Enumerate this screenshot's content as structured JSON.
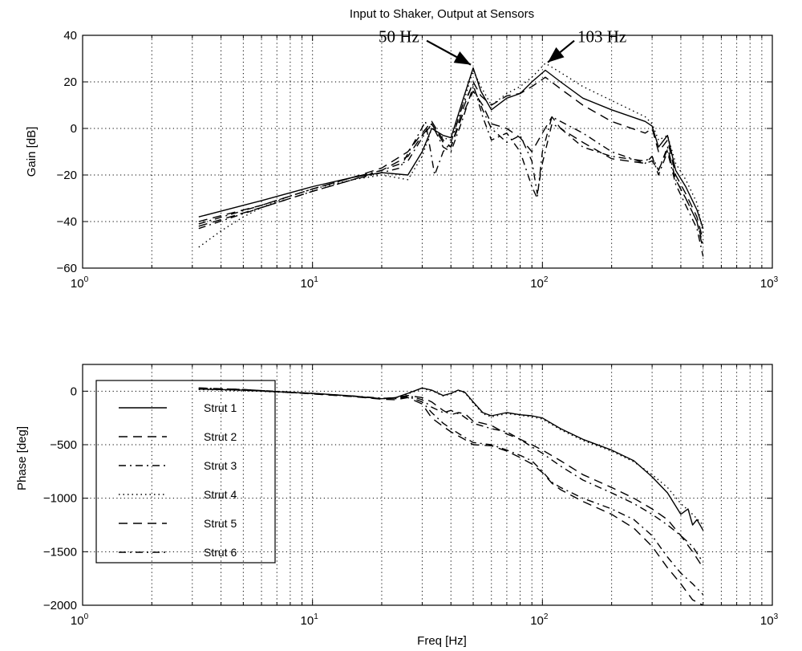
{
  "chart_data": [
    {
      "type": "line",
      "title": "Input to Shaker, Output at Sensors",
      "xlabel": "",
      "ylabel": "Gain  [dB]",
      "xscale": "log",
      "xlim": [
        1,
        1000
      ],
      "ylim": [
        -60,
        40
      ],
      "grid": true,
      "xticks": [
        {
          "base": "10",
          "exp": "0"
        },
        {
          "base": "10",
          "exp": "1"
        },
        {
          "base": "10",
          "exp": "2"
        },
        {
          "base": "10",
          "exp": "3"
        }
      ],
      "yticks": [
        "40",
        "20",
        "0",
        "−20",
        "−40",
        "−60"
      ],
      "ytick_values": [
        40,
        20,
        0,
        -20,
        -40,
        -60
      ],
      "annotations": [
        {
          "text": "50 Hz",
          "x": 50,
          "y": 26
        },
        {
          "text": "103 Hz",
          "x": 103,
          "y": 27
        }
      ],
      "series": [
        {
          "name": "Strut 1",
          "style": "solid",
          "x": [
            3.2,
            6,
            10,
            15,
            20,
            26,
            30,
            33,
            37,
            40,
            45,
            50,
            54,
            60,
            70,
            80,
            90,
            103,
            120,
            150,
            200,
            280,
            300,
            320,
            350,
            380,
            420,
            470,
            500
          ],
          "y": [
            -38,
            -31,
            -25,
            -21,
            -19,
            -20,
            -10,
            0,
            -3,
            -4,
            12,
            26,
            16,
            8,
            13,
            15,
            20,
            25,
            20,
            13,
            8,
            3,
            1,
            -8,
            -3,
            -18,
            -25,
            -35,
            -43
          ]
        },
        {
          "name": "Strut 2",
          "style": "dashed",
          "x": [
            3.2,
            6,
            10,
            15,
            20,
            26,
            30,
            33,
            37,
            40,
            45,
            50,
            54,
            60,
            70,
            80,
            90,
            103,
            120,
            150,
            200,
            280,
            300,
            320,
            350,
            380,
            420,
            470,
            500
          ],
          "y": [
            -40,
            -33,
            -26,
            -21,
            -17,
            -10,
            -2,
            3,
            -5,
            -8,
            8,
            20,
            14,
            10,
            14,
            15,
            18,
            22,
            17,
            10,
            3,
            -2,
            0,
            -10,
            -5,
            -20,
            -28,
            -38,
            -48
          ]
        },
        {
          "name": "Strut 3",
          "style": "dashdot",
          "x": [
            3.2,
            6,
            10,
            15,
            20,
            24,
            28,
            31,
            34,
            37,
            40,
            45,
            50,
            55,
            60,
            70,
            80,
            90,
            95,
            100,
            110,
            120,
            150,
            200,
            280,
            300,
            320,
            350,
            380,
            420,
            470,
            500
          ],
          "y": [
            -43,
            -34,
            -27,
            -22,
            -19,
            -17,
            -5,
            3,
            -20,
            -10,
            -6,
            10,
            19,
            5,
            -5,
            -2,
            -10,
            -25,
            -30,
            -10,
            5,
            3,
            -2,
            -10,
            -15,
            -12,
            -18,
            -8,
            -22,
            -30,
            -40,
            -50
          ]
        },
        {
          "name": "Strut 4",
          "style": "dotted",
          "x": [
            3.2,
            4,
            5,
            6,
            8,
            10,
            15,
            20,
            26,
            30,
            33,
            37,
            40,
            45,
            50,
            54,
            60,
            70,
            80,
            90,
            103,
            120,
            150,
            200,
            280,
            300,
            320,
            350,
            380,
            420,
            470,
            500
          ],
          "y": [
            -51,
            -44,
            -38,
            -34,
            -29,
            -26,
            -22,
            -20,
            -22,
            -12,
            0,
            -4,
            -5,
            10,
            25,
            18,
            10,
            15,
            18,
            22,
            28,
            24,
            18,
            12,
            5,
            2,
            -5,
            -3,
            -15,
            -22,
            -32,
            -45
          ]
        },
        {
          "name": "Strut 5",
          "style": "dashed",
          "x": [
            3.2,
            6,
            10,
            15,
            20,
            26,
            30,
            33,
            37,
            40,
            45,
            50,
            55,
            60,
            70,
            80,
            90,
            100,
            110,
            120,
            150,
            200,
            280,
            300,
            320,
            350,
            380,
            420,
            470,
            500
          ],
          "y": [
            -42,
            -34,
            -27,
            -22,
            -18,
            -12,
            -3,
            2,
            -6,
            -8,
            6,
            16,
            10,
            2,
            0,
            -4,
            -10,
            -2,
            5,
            0,
            -6,
            -13,
            -15,
            -14,
            -18,
            -9,
            -22,
            -30,
            -40,
            -52
          ]
        },
        {
          "name": "Strut 6",
          "style": "dashdot",
          "x": [
            3.2,
            6,
            10,
            15,
            20,
            26,
            30,
            33,
            37,
            40,
            45,
            50,
            55,
            60,
            70,
            80,
            90,
            95,
            100,
            110,
            120,
            150,
            200,
            280,
            300,
            320,
            350,
            380,
            420,
            470,
            500
          ],
          "y": [
            -41,
            -33,
            -26,
            -21,
            -18,
            -14,
            -4,
            2,
            -8,
            -10,
            4,
            18,
            8,
            0,
            -6,
            -3,
            -14,
            -28,
            -15,
            2,
            0,
            -8,
            -12,
            -14,
            -12,
            -20,
            -10,
            -24,
            -33,
            -43,
            -55
          ]
        }
      ]
    },
    {
      "type": "line",
      "title": "",
      "xlabel": "Freq  [Hz]",
      "ylabel": "Phase  [deg]",
      "xscale": "log",
      "xlim": [
        1,
        1000
      ],
      "ylim": [
        -2000,
        250
      ],
      "grid": true,
      "xticks": [
        {
          "base": "10",
          "exp": "0"
        },
        {
          "base": "10",
          "exp": "1"
        },
        {
          "base": "10",
          "exp": "2"
        },
        {
          "base": "10",
          "exp": "3"
        }
      ],
      "yticks": [
        "0",
        "−500",
        "−1000",
        "−1500",
        "−2000"
      ],
      "ytick_values": [
        0,
        -500,
        -1000,
        -1500,
        -2000
      ],
      "legend": {
        "placement": "lower-left"
      },
      "series": [
        {
          "name": "Strut 1",
          "style": "solid",
          "x": [
            3.2,
            5,
            10,
            15,
            20,
            23,
            26,
            30,
            33,
            37,
            40,
            43,
            46,
            50,
            55,
            60,
            70,
            80,
            90,
            100,
            120,
            150,
            200,
            250,
            300,
            350,
            400,
            430,
            450,
            470,
            500
          ],
          "y": [
            20,
            10,
            -20,
            -45,
            -70,
            -60,
            -20,
            30,
            10,
            -40,
            -20,
            10,
            -10,
            -100,
            -200,
            -230,
            -200,
            -220,
            -230,
            -250,
            -350,
            -450,
            -550,
            -650,
            -800,
            -950,
            -1150,
            -1100,
            -1250,
            -1200,
            -1300
          ]
        },
        {
          "name": "Strut 2",
          "style": "dashed",
          "x": [
            3.2,
            5,
            10,
            15,
            20,
            23,
            26,
            30,
            33,
            37,
            40,
            43,
            46,
            50,
            55,
            60,
            70,
            80,
            90,
            100,
            120,
            150,
            200,
            250,
            300,
            350,
            400,
            450,
            500
          ],
          "y": [
            25,
            15,
            -25,
            -50,
            -70,
            -65,
            -40,
            -60,
            -100,
            -180,
            -220,
            -200,
            -210,
            -280,
            -300,
            -320,
            -400,
            -450,
            -500,
            -550,
            -650,
            -780,
            -900,
            -1000,
            -1100,
            -1200,
            -1350,
            -1500,
            -1650
          ]
        },
        {
          "name": "Strut 3",
          "style": "dashdot",
          "x": [
            3.2,
            5,
            10,
            15,
            20,
            23,
            26,
            30,
            33,
            37,
            40,
            45,
            50,
            60,
            70,
            80,
            90,
            100,
            110,
            120,
            150,
            200,
            250,
            300,
            350,
            400,
            450,
            500
          ],
          "y": [
            30,
            15,
            -20,
            -45,
            -65,
            -70,
            -50,
            -100,
            -200,
            -300,
            -350,
            -420,
            -480,
            -500,
            -550,
            -600,
            -650,
            -750,
            -850,
            -900,
            -1000,
            -1100,
            -1200,
            -1350,
            -1550,
            -1700,
            -1800,
            -1900
          ]
        },
        {
          "name": "Strut 4",
          "style": "dotted",
          "x": [
            3.2,
            5,
            10,
            15,
            20,
            23,
            26,
            30,
            33,
            37,
            40,
            43,
            46,
            50,
            55,
            60,
            70,
            80,
            90,
            100,
            120,
            150,
            200,
            250,
            300,
            350,
            400,
            450,
            500
          ],
          "y": [
            15,
            5,
            -22,
            -48,
            -72,
            -62,
            -25,
            25,
            5,
            -45,
            -25,
            5,
            -15,
            -110,
            -210,
            -240,
            -210,
            -225,
            -240,
            -260,
            -360,
            -460,
            -560,
            -660,
            -780,
            -900,
            -1050,
            -1150,
            -1250
          ]
        },
        {
          "name": "Strut 5",
          "style": "dashed",
          "x": [
            3.2,
            5,
            10,
            15,
            20,
            23,
            26,
            30,
            33,
            37,
            40,
            45,
            50,
            60,
            70,
            80,
            90,
            100,
            110,
            120,
            150,
            200,
            250,
            300,
            350,
            400,
            450,
            500
          ],
          "y": [
            30,
            15,
            -25,
            -50,
            -75,
            -80,
            -60,
            -120,
            -250,
            -330,
            -380,
            -440,
            -500,
            -510,
            -560,
            -620,
            -680,
            -760,
            -860,
            -920,
            -1030,
            -1150,
            -1280,
            -1450,
            -1650,
            -1800,
            -1950,
            -2000
          ]
        },
        {
          "name": "Strut 6",
          "style": "dashdot",
          "x": [
            3.2,
            5,
            10,
            15,
            20,
            23,
            26,
            30,
            33,
            37,
            40,
            45,
            50,
            60,
            70,
            80,
            90,
            100,
            120,
            150,
            200,
            250,
            300,
            350,
            400,
            450,
            500
          ],
          "y": [
            20,
            10,
            -22,
            -47,
            -68,
            -60,
            -40,
            -80,
            -150,
            -200,
            -180,
            -230,
            -300,
            -350,
            -380,
            -450,
            -520,
            -580,
            -700,
            -830,
            -950,
            -1050,
            -1150,
            -1250,
            -1350,
            -1450,
            -1600
          ]
        }
      ]
    }
  ]
}
